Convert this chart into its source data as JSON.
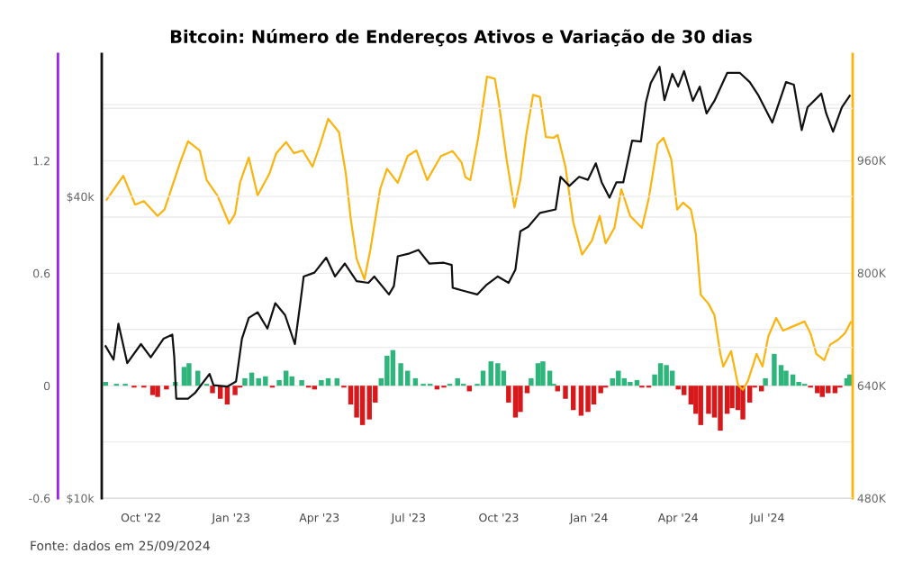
{
  "chart_data": {
    "type": "line",
    "title": "Bitcoin: Número de Endereços Ativos e Variação de 30 dias",
    "annotations": [
      "Fonte: dados em 25/09/2024"
    ],
    "xlim": [
      "2022-08-22",
      "2024-09-26"
    ],
    "xticks": [
      {
        "value": "2022-10-01",
        "label": "Oct '22"
      },
      {
        "value": "2023-01-01",
        "label": "Jan '23"
      },
      {
        "value": "2023-04-01",
        "label": "Apr '23"
      },
      {
        "value": "2023-07-01",
        "label": "Jul '23"
      },
      {
        "value": "2023-10-01",
        "label": "Oct '23"
      },
      {
        "value": "2024-01-01",
        "label": "Jan '24"
      },
      {
        "value": "2024-04-01",
        "label": "Apr '24"
      },
      {
        "value": "2024-07-01",
        "label": "Jul '24"
      }
    ],
    "ylim": [
      -0.6,
      1.77
    ],
    "yticks": [
      -0.6,
      {
        "value": -0.3,
        "label": null
      },
      0,
      {
        "value": 0.3,
        "label": null
      },
      0.6,
      {
        "value": 0.9,
        "label": null
      },
      1.2,
      {
        "value": 1.5,
        "label": null
      }
    ],
    "y2lim": [
      480,
      1111
    ],
    "y2ticks": [
      {
        "value": 480,
        "label": "480K"
      },
      {
        "value": 640,
        "label": "640K"
      },
      {
        "value": 800,
        "label": "800K"
      },
      {
        "value": 960,
        "label": "960K"
      }
    ],
    "y3lim": [
      10000,
      77000
    ],
    "y3ticks": [
      {
        "value": 10000,
        "label": "$10k"
      },
      {
        "value": 20000,
        "label": null
      },
      {
        "value": 40000,
        "label": "$40k"
      },
      {
        "value": 60000,
        "label": null
      }
    ],
    "log": "y3",
    "grid": "y",
    "series": [
      {
        "type": "bar",
        "color": "#2eb57b",
        "x": [
          "2022-08-26",
          "2022-09-06",
          "2022-09-15",
          "2022-11-05",
          "2022-11-14",
          "2022-11-19",
          "2022-11-28",
          "2022-12-07",
          "2023-01-15",
          "2023-01-22",
          "2023-01-29",
          "2023-02-05",
          "2023-02-19",
          "2023-02-26",
          "2023-03-04",
          "2023-03-14",
          "2023-04-03",
          "2023-04-10",
          "2023-04-19",
          "2023-06-03",
          "2023-06-09",
          "2023-06-15",
          "2023-06-23",
          "2023-06-30",
          "2023-07-08",
          "2023-07-16",
          "2023-07-23",
          "2023-08-12",
          "2023-08-20",
          "2023-08-26",
          "2023-09-09",
          "2023-09-15",
          "2023-09-23",
          "2023-09-30",
          "2023-10-06",
          "2023-11-03",
          "2023-11-10",
          "2023-11-15",
          "2023-11-22",
          "2023-11-26",
          "2024-01-25",
          "2024-01-31",
          "2024-02-06",
          "2024-02-12",
          "2024-02-19",
          "2024-03-08",
          "2024-03-14",
          "2024-03-20",
          "2024-03-26",
          "2024-06-29",
          "2024-07-08",
          "2024-07-15",
          "2024-07-20",
          "2024-07-27",
          "2024-08-02",
          "2024-08-08",
          "2024-09-20",
          "2024-09-23"
        ],
        "values": [
          0.02,
          0.01,
          0.01,
          0.02,
          0.1,
          0.12,
          0.08,
          0.01,
          0.04,
          0.07,
          0.04,
          0.05,
          0.03,
          0.08,
          0.05,
          0.03,
          0.03,
          0.04,
          0.04,
          0.04,
          0.16,
          0.19,
          0.12,
          0.08,
          0.04,
          0.01,
          0.01,
          0.01,
          0.04,
          0.01,
          0.01,
          0.08,
          0.13,
          0.12,
          0.08,
          0.04,
          0.12,
          0.13,
          0.08,
          0.01,
          0.04,
          0.08,
          0.04,
          0.02,
          0.03,
          0.06,
          0.12,
          0.11,
          0.08,
          0.04,
          0.17,
          0.11,
          0.08,
          0.06,
          0.02,
          0.01,
          0.04,
          0.06
        ]
      },
      {
        "type": "bar",
        "color": "#d7191c",
        "x": [
          "2022-09-24",
          "2022-10-04",
          "2022-10-13",
          "2022-10-18",
          "2022-10-27",
          "2022-12-13",
          "2022-12-21",
          "2022-12-28",
          "2023-01-05",
          "2023-01-10",
          "2023-02-12",
          "2023-03-21",
          "2023-03-27",
          "2023-04-26",
          "2023-05-03",
          "2023-05-09",
          "2023-05-15",
          "2023-05-22",
          "2023-05-28",
          "2023-07-30",
          "2023-08-06",
          "2023-09-01",
          "2023-10-11",
          "2023-10-18",
          "2023-10-23",
          "2023-10-30",
          "2023-11-30",
          "2023-12-08",
          "2023-12-16",
          "2023-12-24",
          "2023-12-31",
          "2024-01-06",
          "2024-01-13",
          "2024-01-18",
          "2024-02-24",
          "2024-03-02",
          "2024-04-01",
          "2024-04-07",
          "2024-04-14",
          "2024-04-19",
          "2024-04-24",
          "2024-05-02",
          "2024-05-08",
          "2024-05-14",
          "2024-05-21",
          "2024-05-26",
          "2024-06-01",
          "2024-06-06",
          "2024-06-13",
          "2024-06-18",
          "2024-06-25",
          "2024-08-14",
          "2024-08-21",
          "2024-08-26",
          "2024-09-01",
          "2024-09-08",
          "2024-09-13"
        ],
        "values": [
          -0.01,
          -0.01,
          -0.05,
          -0.06,
          -0.02,
          -0.04,
          -0.07,
          -0.1,
          -0.05,
          -0.01,
          -0.01,
          -0.01,
          -0.02,
          -0.01,
          -0.1,
          -0.17,
          -0.21,
          -0.18,
          -0.09,
          -0.02,
          -0.01,
          -0.03,
          -0.09,
          -0.17,
          -0.14,
          -0.04,
          -0.03,
          -0.07,
          -0.13,
          -0.16,
          -0.14,
          -0.1,
          -0.04,
          -0.01,
          -0.01,
          -0.01,
          -0.02,
          -0.05,
          -0.1,
          -0.15,
          -0.21,
          -0.15,
          -0.17,
          -0.24,
          -0.15,
          -0.12,
          -0.13,
          -0.18,
          -0.09,
          -0.01,
          -0.03,
          -0.01,
          -0.04,
          -0.06,
          -0.04,
          -0.04,
          -0.01
        ]
      },
      {
        "axis": "y2",
        "color": "#fbb40f",
        "x": [
          "2022-08-27",
          "2022-09-13",
          "2022-09-25",
          "2022-10-04",
          "2022-10-18",
          "2022-10-25",
          "2022-11-10",
          "2022-11-18",
          "2022-11-30",
          "2022-12-07",
          "2022-12-18",
          "2022-12-30",
          "2023-01-05",
          "2023-01-10",
          "2023-01-19",
          "2023-01-28",
          "2023-02-09",
          "2023-02-16",
          "2023-02-26",
          "2023-03-06",
          "2023-03-15",
          "2023-03-25",
          "2023-04-02",
          "2023-04-10",
          "2023-04-21",
          "2023-04-28",
          "2023-05-03",
          "2023-05-09",
          "2023-05-17",
          "2023-05-23",
          "2023-06-02",
          "2023-06-09",
          "2023-06-20",
          "2023-06-30",
          "2023-07-09",
          "2023-07-20",
          "2023-08-03",
          "2023-08-15",
          "2023-08-24",
          "2023-08-28",
          "2023-09-02",
          "2023-09-10",
          "2023-09-19",
          "2023-09-27",
          "2023-10-01",
          "2023-10-09",
          "2023-10-17",
          "2023-10-23",
          "2023-10-29",
          "2023-11-05",
          "2023-11-12",
          "2023-11-18",
          "2023-11-26",
          "2023-11-30",
          "2023-12-08",
          "2023-12-16",
          "2023-12-25",
          "2024-01-04",
          "2024-01-12",
          "2024-01-18",
          "2024-01-27",
          "2024-02-03",
          "2024-02-12",
          "2024-02-24",
          "2024-03-02",
          "2024-03-11",
          "2024-03-17",
          "2024-03-25",
          "2024-03-31",
          "2024-04-06",
          "2024-04-14",
          "2024-04-19",
          "2024-04-24",
          "2024-05-02",
          "2024-05-08",
          "2024-05-14",
          "2024-05-17",
          "2024-05-25",
          "2024-06-01",
          "2024-06-06",
          "2024-06-11",
          "2024-06-20",
          "2024-06-26",
          "2024-07-02",
          "2024-07-10",
          "2024-07-17",
          "2024-07-27",
          "2024-08-08",
          "2024-08-14",
          "2024-08-20",
          "2024-08-28",
          "2024-09-03",
          "2024-09-11",
          "2024-09-18",
          "2024-09-24"
        ],
        "values": [
          904,
          938,
          897,
          902,
          881,
          890,
          957,
          987,
          974,
          932,
          910,
          870,
          884,
          928,
          964,
          910,
          941,
          970,
          986,
          970,
          974,
          951,
          983,
          1019,
          1000,
          941,
          877,
          820,
          791,
          833,
          919,
          948,
          928,
          966,
          974,
          932,
          966,
          973,
          957,
          936,
          932,
          992,
          1079,
          1076,
          1043,
          961,
          893,
          932,
          996,
          1053,
          1050,
          993,
          992,
          996,
          951,
          872,
          826,
          846,
          881,
          842,
          864,
          919,
          881,
          864,
          906,
          983,
          992,
          961,
          890,
          900,
          890,
          855,
          769,
          756,
          740,
          685,
          667,
          689,
          641,
          634,
          646,
          685,
          667,
          710,
          736,
          718,
          724,
          731,
          714,
          685,
          676,
          698,
          705,
          714,
          730
        ]
      },
      {
        "axis": "y3",
        "color": "#111111",
        "x": [
          "2022-08-26",
          "2022-09-03",
          "2022-09-08",
          "2022-09-17",
          "2022-10-01",
          "2022-10-11",
          "2022-10-24",
          "2022-11-02",
          "2022-11-04",
          "2022-11-06",
          "2022-11-18",
          "2022-11-25",
          "2022-12-10",
          "2022-12-14",
          "2022-12-28",
          "2023-01-06",
          "2023-01-12",
          "2023-01-19",
          "2023-01-28",
          "2023-02-07",
          "2023-02-15",
          "2023-02-25",
          "2023-03-07",
          "2023-03-13",
          "2023-03-16",
          "2023-03-27",
          "2023-04-08",
          "2023-04-17",
          "2023-04-27",
          "2023-05-09",
          "2023-05-21",
          "2023-05-27",
          "2023-06-11",
          "2023-06-16",
          "2023-06-20",
          "2023-07-02",
          "2023-07-11",
          "2023-07-22",
          "2023-08-06",
          "2023-08-14",
          "2023-08-15",
          "2023-08-24",
          "2023-09-09",
          "2023-09-18",
          "2023-09-30",
          "2023-10-11",
          "2023-10-18",
          "2023-10-23",
          "2023-10-31",
          "2023-11-12",
          "2023-11-28",
          "2023-12-03",
          "2023-12-12",
          "2023-12-22",
          "2023-12-31",
          "2024-01-08",
          "2024-01-14",
          "2024-01-22",
          "2024-01-29",
          "2024-02-05",
          "2024-02-14",
          "2024-02-23",
          "2024-02-28",
          "2024-03-04",
          "2024-03-13",
          "2024-03-18",
          "2024-03-26",
          "2024-04-01",
          "2024-04-07",
          "2024-04-16",
          "2024-04-23",
          "2024-04-30",
          "2024-05-08",
          "2024-05-21",
          "2024-06-03",
          "2024-06-13",
          "2024-06-22",
          "2024-07-06",
          "2024-07-20",
          "2024-07-28",
          "2024-08-05",
          "2024-08-11",
          "2024-08-25",
          "2024-08-30",
          "2024-09-06",
          "2024-09-15",
          "2024-09-23"
        ],
        "values": [
          20100,
          18900,
          22300,
          18600,
          20300,
          19100,
          20800,
          21200,
          19100,
          15800,
          15800,
          16200,
          17700,
          16800,
          16700,
          17100,
          20800,
          22900,
          23500,
          21800,
          24500,
          23200,
          20300,
          24900,
          27700,
          28200,
          30200,
          27700,
          29400,
          27100,
          26900,
          27700,
          25500,
          26500,
          30400,
          30800,
          31300,
          29400,
          29500,
          29200,
          26300,
          26000,
          25500,
          26600,
          27700,
          26900,
          28600,
          34100,
          34800,
          37100,
          37700,
          43800,
          42000,
          43800,
          43200,
          46600,
          42700,
          39800,
          42700,
          42700,
          51700,
          51500,
          61500,
          67400,
          72600,
          62300,
          70300,
          66300,
          71200,
          62100,
          66300,
          58600,
          62100,
          70600,
          70600,
          67700,
          63600,
          56200,
          67700,
          66900,
          54300,
          60300,
          64200,
          58600,
          53900,
          60300,
          63600
        ]
      }
    ]
  }
}
